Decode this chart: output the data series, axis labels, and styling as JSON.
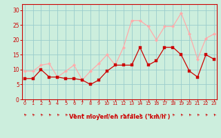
{
  "x": [
    0,
    1,
    2,
    3,
    4,
    5,
    6,
    7,
    8,
    9,
    10,
    11,
    12,
    13,
    14,
    15,
    16,
    17,
    18,
    19,
    20,
    21,
    22,
    23
  ],
  "wind_avg": [
    7,
    7,
    10,
    7.5,
    7.5,
    7,
    7,
    6.5,
    5,
    6.5,
    9.5,
    11.5,
    11.5,
    11.5,
    17.5,
    11.5,
    13,
    17.5,
    17.5,
    15,
    9.5,
    7.5,
    15,
    13.5
  ],
  "wind_gust": [
    9.5,
    9.5,
    11.5,
    12,
    7.5,
    9.5,
    11.5,
    6.5,
    9.5,
    12,
    15,
    11.5,
    17.5,
    26.5,
    26.5,
    24.5,
    20,
    24.5,
    24.5,
    29,
    22,
    13.5,
    20.5,
    22
  ],
  "avg_color": "#cc0000",
  "gust_color": "#ffaaaa",
  "background_color": "#cceedd",
  "grid_color": "#99cccc",
  "xlabel": "Vent moyen/en rafales ( km/h )",
  "xlabel_color": "#cc0000",
  "tick_color": "#cc0000",
  "ylim": [
    0,
    32
  ],
  "yticks": [
    0,
    5,
    10,
    15,
    20,
    25,
    30
  ],
  "xlim": [
    -0.3,
    23.3
  ]
}
